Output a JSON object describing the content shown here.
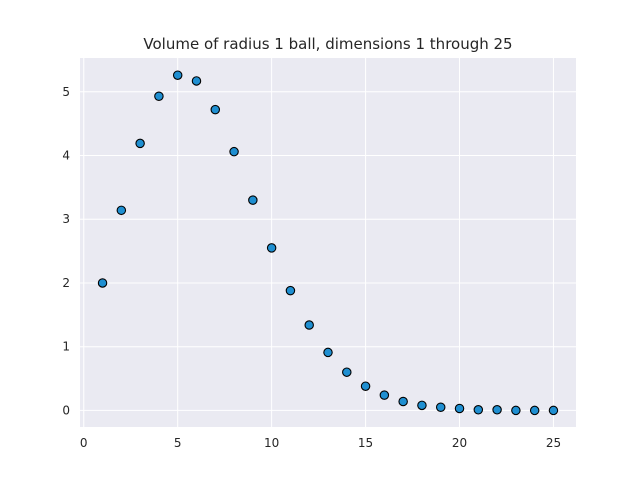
{
  "chart_data": {
    "type": "scatter",
    "title": "Volume of radius 1 ball, dimensions 1 through 25",
    "xlabel": "",
    "ylabel": "",
    "xlim": [
      -0.2,
      26.2
    ],
    "ylim": [
      -0.26,
      5.53
    ],
    "xticks": [
      0,
      5,
      10,
      15,
      20,
      25
    ],
    "yticks": [
      0,
      1,
      2,
      3,
      4,
      5
    ],
    "grid": true,
    "legend": "none",
    "colors": {
      "plot_background": "#eaeaf2",
      "grid": "#ffffff",
      "marker_fill": "#1f8fd1",
      "marker_edge": "#000000"
    },
    "x": [
      1,
      2,
      3,
      4,
      5,
      6,
      7,
      8,
      9,
      10,
      11,
      12,
      13,
      14,
      15,
      16,
      17,
      18,
      19,
      20,
      21,
      22,
      23,
      24,
      25
    ],
    "y": [
      2.0,
      3.14,
      4.19,
      4.93,
      5.26,
      5.17,
      4.72,
      4.06,
      3.3,
      2.55,
      1.88,
      1.34,
      0.91,
      0.6,
      0.38,
      0.24,
      0.14,
      0.08,
      0.05,
      0.03,
      0.01,
      0.01,
      0.0,
      0.0,
      0.0
    ]
  }
}
